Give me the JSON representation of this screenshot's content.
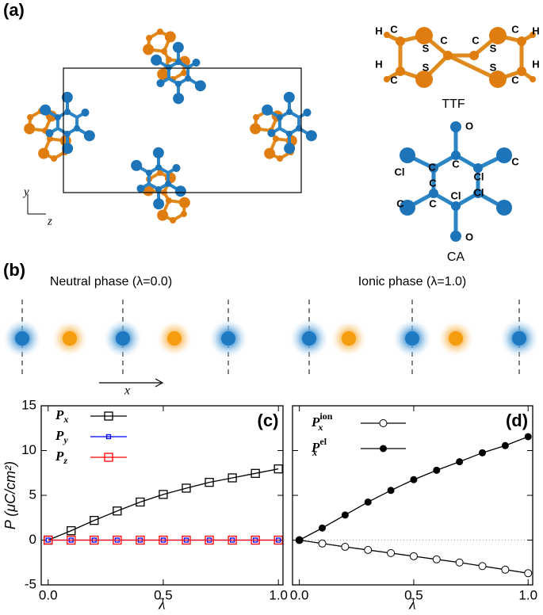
{
  "panel_labels": [
    "(a)",
    "(b)"
  ],
  "crystal_axes": [
    "y",
    "z"
  ],
  "ttf": {
    "name": "TTF",
    "atoms": [
      "H",
      "C",
      "S",
      "C",
      "C",
      "S",
      "C",
      "H",
      "H",
      "C",
      "S",
      "S",
      "C",
      "H"
    ]
  },
  "ca": {
    "name": "CA",
    "atoms": [
      "O",
      "Cl",
      "C",
      "C",
      "Cl",
      "C",
      "C",
      "Cl",
      "C",
      "C",
      "Cl",
      "O"
    ]
  },
  "phases": {
    "neutral": "Neutral phase (λ=0.0)",
    "ionic": "Ionic phase (λ=1.0)",
    "axis": "x"
  },
  "chart_data": [
    {
      "type": "line",
      "panel_label": "(c)",
      "x_label": "λ",
      "y_label": "P (μC/cm²)",
      "x": [
        0.0,
        0.1,
        0.2,
        0.3,
        0.4,
        0.5,
        0.6,
        0.7,
        0.8,
        0.9,
        1.0
      ],
      "xlim": [
        -0.03,
        1.02
      ],
      "ylim": [
        -5,
        15
      ],
      "xticks": [
        {
          "value": 0,
          "label": "0.0"
        },
        {
          "value": 0.5,
          "label": "0.5"
        },
        {
          "value": 1,
          "label": "1.0"
        }
      ],
      "yticks": [
        -5,
        0,
        5,
        10,
        15
      ],
      "series": [
        {
          "name": "P",
          "subscript": "x",
          "color": "#000000",
          "marker": "open-square",
          "values": [
            0,
            1.05,
            2.2,
            3.25,
            4.25,
            5.1,
            5.8,
            6.45,
            6.95,
            7.45,
            7.95
          ]
        },
        {
          "name": "P",
          "subscript": "y",
          "color": "#0000ff",
          "marker": "small-square",
          "values": [
            0,
            0,
            0,
            0,
            0,
            0,
            0,
            0,
            0,
            0,
            0
          ]
        },
        {
          "name": "P",
          "subscript": "z",
          "color": "#ff0000",
          "marker": "open-square",
          "values": [
            0,
            0,
            0,
            0,
            0,
            0,
            0,
            0,
            0,
            0,
            0
          ]
        }
      ]
    },
    {
      "type": "line",
      "panel_label": "(d)",
      "x_label": "λ",
      "x": [
        0.0,
        0.1,
        0.2,
        0.3,
        0.4,
        0.5,
        0.6,
        0.7,
        0.8,
        0.9,
        1.0
      ],
      "xlim": [
        -0.03,
        1.02
      ],
      "ylim": [
        -5,
        15
      ],
      "xticks": [
        {
          "value": 0,
          "label": "0.0"
        },
        {
          "value": 0.5,
          "label": "0.5"
        },
        {
          "value": 1,
          "label": "1.0"
        }
      ],
      "yticks": [
        -5,
        0,
        5,
        10,
        15
      ],
      "ytick_labels": false,
      "zero_line": true,
      "series": [
        {
          "name": "P",
          "subscript": "x",
          "superscript": "ion",
          "color": "#000000",
          "marker": "open-circle",
          "values": [
            0,
            -0.38,
            -0.75,
            -1.1,
            -1.45,
            -1.8,
            -2.15,
            -2.5,
            -2.9,
            -3.3,
            -3.7
          ]
        },
        {
          "name": "P",
          "subscript": "x",
          "superscript": "el",
          "color": "#000000",
          "marker": "filled-circle",
          "values": [
            0,
            1.35,
            2.8,
            4.25,
            5.55,
            6.75,
            7.8,
            8.75,
            9.75,
            10.55,
            11.55
          ]
        }
      ]
    }
  ]
}
